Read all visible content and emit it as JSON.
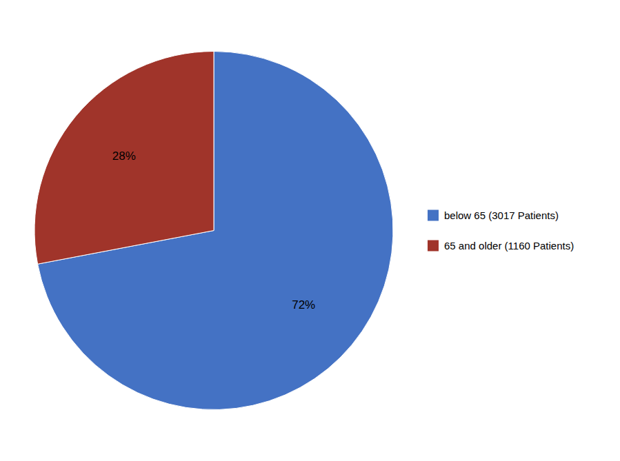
{
  "chart_data": {
    "type": "pie",
    "categories": [
      "below 65 (3017 Patients)",
      "65 and older (1160 Patients)"
    ],
    "values": [
      72,
      28
    ],
    "value_labels": [
      "72%",
      "28%"
    ],
    "colors": [
      "#4472C4",
      "#A0342A"
    ],
    "data_labels": true,
    "legend": "right"
  }
}
